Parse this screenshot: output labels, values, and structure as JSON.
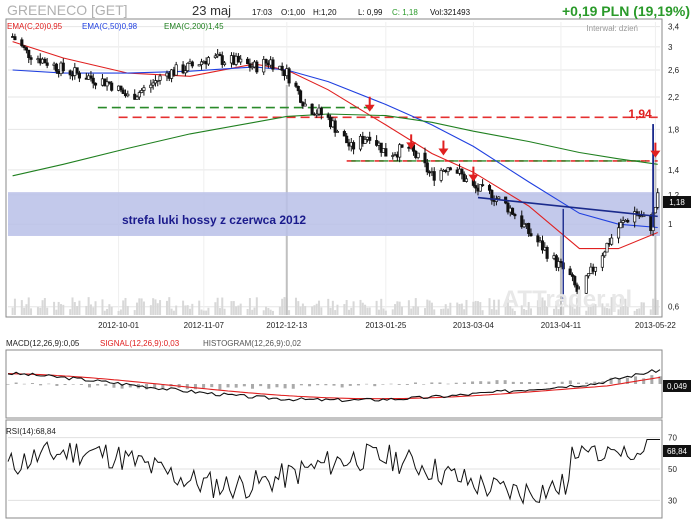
{
  "header": {
    "ticker": "GREENECO [GET]",
    "date": "23 maj",
    "time": "17:03",
    "open": "O:1,00",
    "high": "H:1,20",
    "low": "L: 0,99",
    "close": "C: 1,18",
    "volume": "Vol:321493",
    "change": "+0,19 PLN (19,19%)",
    "interval": "Interwał: dzień"
  },
  "legend": {
    "ema20": "EMA(C,20)0,95",
    "ema50": "EMA(C,50)0,98",
    "ema200": "EMA(C,200)1,45"
  },
  "annotations": {
    "gap_zone": "strefa luki hossy z czerwca 2012",
    "target": "1,94",
    "last_price": "1,18",
    "watermark": "ATTrader.pl"
  },
  "chart_data": [
    {
      "type": "candlestick",
      "y_scale": "log",
      "ylim": [
        0.57,
        3.5
      ],
      "y_ticks": [
        "3,4",
        "3",
        "2,6",
        "2,2",
        "1,8",
        "1,4",
        "1,2",
        "1",
        "0,6"
      ],
      "y_tick_values": [
        3.4,
        3.0,
        2.6,
        2.2,
        1.8,
        1.4,
        1.2,
        1.0,
        0.6
      ],
      "x_ticks": [
        "2012-10-01",
        "2012-11-07",
        "2012-12-13",
        "2013-01-25",
        "2013-03-04",
        "2013-04-11",
        "2013-05-22"
      ],
      "close_path": [
        [
          "2012-08-16",
          3.2
        ],
        [
          "2012-08-22",
          2.9
        ],
        [
          "2012-08-30",
          2.75
        ],
        [
          "2012-09-07",
          2.6
        ],
        [
          "2012-09-17",
          2.5
        ],
        [
          "2012-09-27",
          2.4
        ],
        [
          "2012-10-05",
          2.2
        ],
        [
          "2012-10-12",
          2.3
        ],
        [
          "2012-10-22",
          2.55
        ],
        [
          "2012-11-01",
          2.65
        ],
        [
          "2012-11-09",
          2.8
        ],
        [
          "2012-11-19",
          2.75
        ],
        [
          "2012-11-29",
          2.65
        ],
        [
          "2012-12-06",
          2.75
        ],
        [
          "2012-12-13",
          2.55
        ],
        [
          "2012-12-21",
          2.1
        ],
        [
          "2012-12-31",
          1.92
        ],
        [
          "2013-01-10",
          1.6
        ],
        [
          "2013-01-18",
          1.75
        ],
        [
          "2013-01-25",
          1.55
        ],
        [
          "2013-02-04",
          1.6
        ],
        [
          "2013-02-14",
          1.35
        ],
        [
          "2013-02-22",
          1.45
        ],
        [
          "2013-03-04",
          1.25
        ],
        [
          "2013-03-12",
          1.2
        ],
        [
          "2013-03-20",
          1.1
        ],
        [
          "2013-03-28",
          0.95
        ],
        [
          "2013-04-08",
          0.8
        ],
        [
          "2013-04-15",
          0.72
        ],
        [
          "2013-04-19",
          0.64
        ],
        [
          "2013-04-26",
          0.78
        ],
        [
          "2013-05-06",
          0.98
        ],
        [
          "2013-05-13",
          1.08
        ],
        [
          "2013-05-20",
          0.99
        ],
        [
          "2013-05-23",
          1.18
        ]
      ],
      "series": [
        {
          "name": "EMA(C,20)",
          "values": [
            [
              "2012-08-16",
              3.1
            ],
            [
              "2012-09-07",
              2.8
            ],
            [
              "2012-10-05",
              2.55
            ],
            [
              "2012-11-01",
              2.5
            ],
            [
              "2012-11-29",
              2.7
            ],
            [
              "2012-12-13",
              2.6
            ],
            [
              "2012-12-31",
              2.3
            ],
            [
              "2013-01-25",
              1.85
            ],
            [
              "2013-02-14",
              1.55
            ],
            [
              "2013-03-04",
              1.38
            ],
            [
              "2013-03-28",
              1.12
            ],
            [
              "2013-04-19",
              0.86
            ],
            [
              "2013-05-06",
              0.86
            ],
            [
              "2013-05-23",
              0.95
            ]
          ]
        },
        {
          "name": "EMA(C,50)",
          "values": [
            [
              "2012-08-16",
              2.6
            ],
            [
              "2012-09-07",
              2.55
            ],
            [
              "2012-10-05",
              2.55
            ],
            [
              "2012-11-01",
              2.58
            ],
            [
              "2012-11-29",
              2.65
            ],
            [
              "2012-12-13",
              2.6
            ],
            [
              "2012-12-31",
              2.42
            ],
            [
              "2013-01-25",
              2.1
            ],
            [
              "2013-02-14",
              1.85
            ],
            [
              "2013-03-04",
              1.62
            ],
            [
              "2013-03-28",
              1.3
            ],
            [
              "2013-04-19",
              1.07
            ],
            [
              "2013-05-06",
              1.0
            ],
            [
              "2013-05-23",
              0.98
            ]
          ]
        },
        {
          "name": "EMA(C,200)",
          "values": [
            [
              "2012-08-16",
              1.35
            ],
            [
              "2012-09-07",
              1.45
            ],
            [
              "2012-10-05",
              1.6
            ],
            [
              "2012-11-01",
              1.75
            ],
            [
              "2012-11-29",
              1.88
            ],
            [
              "2012-12-13",
              1.95
            ],
            [
              "2012-12-31",
              1.98
            ],
            [
              "2013-01-25",
              1.96
            ],
            [
              "2013-02-14",
              1.88
            ],
            [
              "2013-03-04",
              1.78
            ],
            [
              "2013-03-28",
              1.67
            ],
            [
              "2013-04-19",
              1.56
            ],
            [
              "2013-05-06",
              1.5
            ],
            [
              "2013-05-23",
              1.45
            ]
          ]
        }
      ],
      "levels": [
        {
          "value": 1.94,
          "color": "#e53030",
          "style": "dashed"
        },
        {
          "value": 1.48,
          "color": "#e53030",
          "style": "dashed"
        },
        {
          "value": 2.06,
          "color": "#2a8a2a",
          "style": "dashed"
        }
      ],
      "gap_zone_range": [
        0.93,
        1.22
      ]
    },
    {
      "type": "line",
      "title": "MACD(12,26,9):0,05",
      "series": [
        {
          "name": "SIGNAL(12,26,9)",
          "value_label": "SIGNAL(12,26,9):0,03"
        },
        {
          "name": "HISTOGRAM(12,26,9)",
          "value_label": "HISTOGRAM(12,26,9):0,02"
        }
      ],
      "last_value": "0,049"
    },
    {
      "type": "line",
      "title": "RSI(14):68,84",
      "y_ticks": [
        "70",
        "50",
        "30"
      ],
      "y_tick_values": [
        70,
        50,
        30
      ],
      "last_value": "68,84"
    }
  ],
  "colors": {
    "candle": "#111111",
    "ema20": "#e02020",
    "ema50": "#2040e0",
    "ema200": "#208020",
    "gap_zone": "#b8c0e8",
    "gap_text": "#1a1a8c",
    "change": "#2a9a2a",
    "arrow": "#e02020"
  }
}
